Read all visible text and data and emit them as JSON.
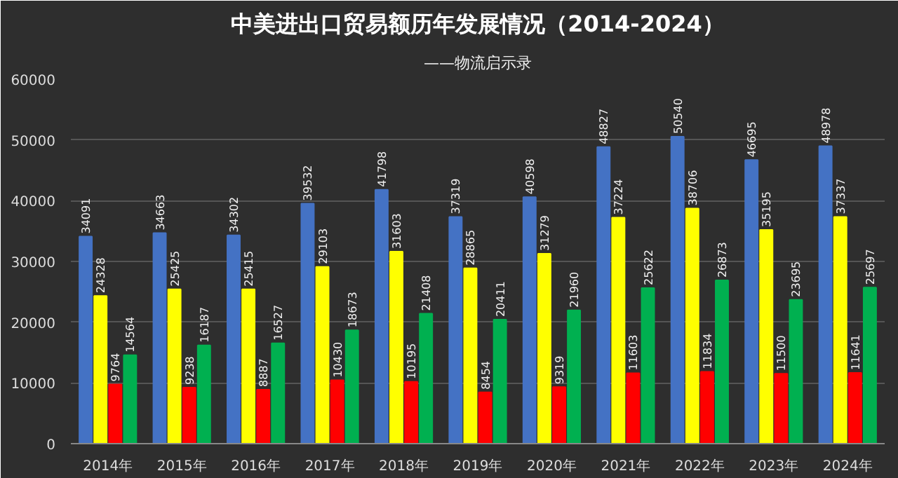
{
  "chart_data": {
    "type": "bar",
    "title": "中美进出口贸易额历年发展情况（2014-2024）",
    "subtitle": "——物流启示录",
    "categories": [
      "2014年",
      "2015年",
      "2016年",
      "2017年",
      "2018年",
      "2019年",
      "2020年",
      "2021年",
      "2022年",
      "2023年",
      "2024年"
    ],
    "series": [
      {
        "color": "#4472c4",
        "values": [
          34091,
          34663,
          34302,
          39532,
          41798,
          37319,
          40598,
          48827,
          50540,
          46695,
          48978
        ]
      },
      {
        "color": "#ffff00",
        "values": [
          24328,
          25425,
          25415,
          29103,
          31603,
          28865,
          31279,
          37224,
          38706,
          35195,
          37337
        ]
      },
      {
        "color": "#ff0000",
        "values": [
          9764,
          9238,
          8887,
          10430,
          10195,
          8454,
          9319,
          11603,
          11834,
          11500,
          11641
        ]
      },
      {
        "color": "#00b050",
        "values": [
          14564,
          16187,
          16527,
          18673,
          21408,
          20411,
          21960,
          25622,
          26873,
          23695,
          25697
        ]
      }
    ],
    "ylim": [
      0,
      60000
    ],
    "yticks": [
      0,
      10000,
      20000,
      30000,
      40000,
      50000,
      60000
    ],
    "grid": "y",
    "data_labels": true
  }
}
